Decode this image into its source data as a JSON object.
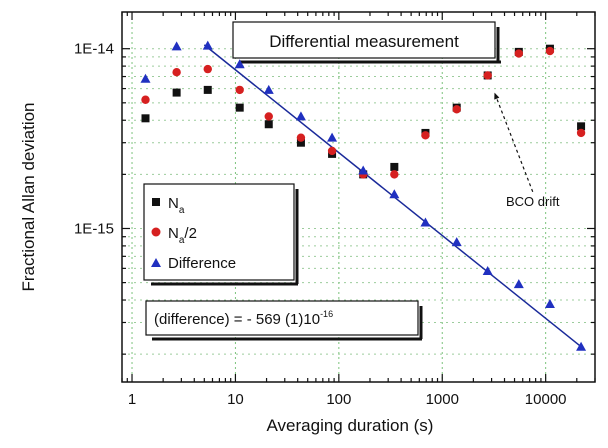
{
  "chart_data": {
    "type": "scatter",
    "title": "",
    "xlabel": "Averaging duration (s)",
    "ylabel": "Fractional Allan deviation",
    "xscale": "log",
    "yscale": "log",
    "xlim": [
      0.8,
      30000
    ],
    "ylim": [
      1.4e-16,
      1.6e-14
    ],
    "grid": true,
    "x_ticks": [
      {
        "value": 1,
        "label": "1"
      },
      {
        "value": 10,
        "label": "10"
      },
      {
        "value": 100,
        "label": "100"
      },
      {
        "value": 1000,
        "label": "1000"
      },
      {
        "value": 10000,
        "label": "10000"
      }
    ],
    "y_ticks": [
      {
        "value": 1e-15,
        "label": "1E-15"
      },
      {
        "value": 1e-14,
        "label": "1E-14"
      }
    ],
    "legend": {
      "placement": "lower-left",
      "entries": [
        {
          "label": "N",
          "subscript": "a",
          "suffix": "",
          "marker": "square",
          "color": "#111111"
        },
        {
          "label": "N",
          "subscript": "a",
          "suffix": "/2",
          "marker": "circle",
          "color": "#d62020"
        },
        {
          "label": "Difference",
          "subscript": "",
          "suffix": "",
          "marker": "triangle",
          "color": "#2030c0"
        }
      ]
    },
    "series": [
      {
        "marker": "square",
        "color": "#111111",
        "points": [
          [
            1.35,
            4.1e-15
          ],
          [
            2.7,
            5.7e-15
          ],
          [
            5.4,
            5.9e-15
          ],
          [
            11,
            4.7e-15
          ],
          [
            21,
            3.8e-15
          ],
          [
            43,
            3e-15
          ],
          [
            86,
            2.6e-15
          ],
          [
            172,
            2e-15
          ],
          [
            344,
            2.2e-15
          ],
          [
            688,
            3.4e-15
          ],
          [
            1380,
            4.7e-15
          ],
          [
            2750,
            7.1e-15
          ],
          [
            5500,
            9.6e-15
          ],
          [
            11000,
            1e-14
          ],
          [
            22000,
            3.7e-15
          ]
        ]
      },
      {
        "marker": "circle",
        "color": "#d62020",
        "points": [
          [
            1.35,
            5.2e-15
          ],
          [
            2.7,
            7.4e-15
          ],
          [
            5.4,
            7.7e-15
          ],
          [
            11,
            5.9e-15
          ],
          [
            21,
            4.2e-15
          ],
          [
            43,
            3.2e-15
          ],
          [
            86,
            2.7e-15
          ],
          [
            172,
            2e-15
          ],
          [
            344,
            2e-15
          ],
          [
            688,
            3.3e-15
          ],
          [
            1380,
            4.6e-15
          ],
          [
            2750,
            7.1e-15
          ],
          [
            5500,
            9.4e-15
          ],
          [
            11000,
            9.7e-15
          ],
          [
            22000,
            3.4e-15
          ]
        ]
      },
      {
        "marker": "triangle",
        "color": "#2030c0",
        "points": [
          [
            1.35,
            6.8e-15
          ],
          [
            2.7,
            1.03e-14
          ],
          [
            5.4,
            1.04e-14
          ],
          [
            11,
            8.2e-15
          ],
          [
            21,
            5.9e-15
          ],
          [
            43,
            4.2e-15
          ],
          [
            86,
            3.2e-15
          ],
          [
            172,
            2.1e-15
          ],
          [
            344,
            1.55e-15
          ],
          [
            688,
            1.08e-15
          ],
          [
            1380,
            8.4e-16
          ],
          [
            2750,
            5.8e-16
          ],
          [
            5500,
            4.9e-16
          ],
          [
            11000,
            3.8e-16
          ],
          [
            22000,
            2.2e-16
          ]
        ]
      }
    ],
    "fit_line": {
      "x": [
        5,
        22000
      ],
      "y": [
        1.05e-14,
        2.2e-16
      ],
      "color": "#1a2a9a"
    },
    "annotations": [
      {
        "id": "title_box",
        "text": "Differential measurement"
      },
      {
        "id": "equation_box",
        "text": "(difference) = - 569 (1)10",
        "superscript": "-16"
      },
      {
        "id": "drift_label",
        "text": "BCO drift"
      }
    ],
    "drift_arrow": {
      "from": [
        7500,
        1.6e-15
      ],
      "to": [
        3200,
        5.7e-15
      ]
    }
  }
}
